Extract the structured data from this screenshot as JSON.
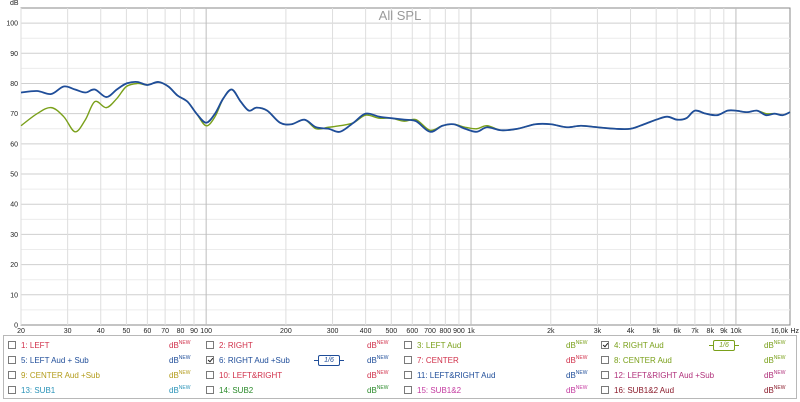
{
  "chart_data": {
    "type": "line",
    "title": "All SPL",
    "ylabel": "dB",
    "xunit": "Hz",
    "x_scale": "log",
    "xlim": [
      20,
      16000
    ],
    "ylim": [
      0,
      105
    ],
    "grid": true,
    "y_ticks": [
      "0",
      "10",
      "20",
      "30",
      "40",
      "50",
      "60",
      "70",
      "80",
      "90",
      "100"
    ],
    "x_ticks": [
      {
        "v": 20,
        "t": "20"
      },
      {
        "v": 30,
        "t": "30"
      },
      {
        "v": 40,
        "t": "40"
      },
      {
        "v": 50,
        "t": "50"
      },
      {
        "v": 60,
        "t": "60"
      },
      {
        "v": 70,
        "t": "70"
      },
      {
        "v": 80,
        "t": "80"
      },
      {
        "v": 90,
        "t": "90"
      },
      {
        "v": 100,
        "t": "100"
      },
      {
        "v": 200,
        "t": "200"
      },
      {
        "v": 300,
        "t": "300"
      },
      {
        "v": 400,
        "t": "400"
      },
      {
        "v": 500,
        "t": "500"
      },
      {
        "v": 600,
        "t": "600"
      },
      {
        "v": 700,
        "t": "700"
      },
      {
        "v": 800,
        "t": "800"
      },
      {
        "v": 900,
        "t": "900"
      },
      {
        "v": 1000,
        "t": "1k"
      },
      {
        "v": 2000,
        "t": "2k"
      },
      {
        "v": 3000,
        "t": "3k"
      },
      {
        "v": 4000,
        "t": "4k"
      },
      {
        "v": 5000,
        "t": "5k"
      },
      {
        "v": 6000,
        "t": "6k"
      },
      {
        "v": 7000,
        "t": "7k"
      },
      {
        "v": 8000,
        "t": "8k"
      },
      {
        "v": 9000,
        "t": "9k"
      },
      {
        "v": 10000,
        "t": "10k"
      },
      {
        "v": 16000,
        "t": "16,0k"
      }
    ],
    "series": [
      {
        "name": "4: RIGHT Aud",
        "color": "#7aa01a",
        "x": [
          20,
          23,
          26,
          29,
          32,
          35,
          38,
          42,
          46,
          50,
          55,
          60,
          66,
          72,
          78,
          85,
          92,
          100,
          108,
          116,
          125,
          135,
          145,
          155,
          170,
          190,
          210,
          235,
          260,
          290,
          320,
          360,
          400,
          450,
          500,
          560,
          620,
          700,
          780,
          860,
          950,
          1050,
          1150,
          1300,
          1500,
          1750,
          2000,
          2300,
          2600,
          3000,
          3500,
          4000,
          4500,
          5000,
          5500,
          6000,
          6500,
          7000,
          7700,
          8500,
          9300,
          10000,
          11000,
          12000,
          13000,
          14000,
          15000,
          16000
        ],
        "y": [
          66,
          70,
          72,
          69,
          64,
          68,
          74,
          72,
          75,
          79,
          80,
          79.5,
          80.5,
          79,
          76,
          74,
          70,
          66,
          69,
          75,
          78,
          74,
          71,
          72,
          71,
          67,
          66.5,
          68,
          65,
          65.5,
          66,
          67,
          69.5,
          68.5,
          68.5,
          67.5,
          68,
          64.5,
          66,
          66.5,
          65.5,
          65,
          66,
          64.5,
          65,
          66.5,
          66.5,
          65.5,
          66,
          65.5,
          65,
          65,
          66.5,
          68,
          69,
          68,
          68.5,
          71,
          70,
          69.5,
          71,
          71,
          70.5,
          71,
          70,
          70,
          69.5,
          70.5
        ]
      },
      {
        "name": "6: RIGHT Aud +Sub",
        "color": "#1f4d99",
        "x": [
          20,
          23,
          26,
          29,
          32,
          35,
          38,
          42,
          46,
          50,
          55,
          60,
          66,
          72,
          78,
          85,
          92,
          100,
          108,
          116,
          125,
          135,
          145,
          155,
          170,
          190,
          210,
          235,
          260,
          290,
          320,
          360,
          400,
          450,
          500,
          560,
          620,
          700,
          780,
          860,
          950,
          1050,
          1150,
          1300,
          1500,
          1750,
          2000,
          2300,
          2600,
          3000,
          3500,
          4000,
          4500,
          5000,
          5500,
          6000,
          6500,
          7000,
          7700,
          8500,
          9300,
          10000,
          11000,
          12000,
          13000,
          14000,
          15000,
          16000
        ],
        "y": [
          77,
          77.5,
          76.5,
          79,
          78,
          77,
          78,
          75.5,
          78,
          80,
          80.5,
          79.5,
          80.5,
          79,
          76,
          74,
          70,
          67,
          70,
          75,
          78,
          74,
          71,
          72,
          71,
          67,
          66.5,
          68,
          65.5,
          65,
          64,
          67,
          70,
          69,
          68.5,
          68,
          67.5,
          64,
          66,
          66.5,
          65,
          64,
          65.5,
          64.5,
          65,
          66.5,
          66.5,
          65.5,
          66,
          65.5,
          65,
          65,
          66.5,
          68,
          69,
          68,
          68.5,
          71,
          70,
          69.5,
          71,
          71,
          70.5,
          71,
          69.5,
          70,
          69.5,
          70.5
        ]
      }
    ]
  },
  "legend": {
    "db_label": "dB",
    "new_label": "NEW",
    "smoothing_label": "1/6",
    "items": [
      {
        "label": "1: LEFT",
        "checked": false,
        "color": "#d0304a",
        "db_color": "#d0304a",
        "smooth": false
      },
      {
        "label": "2: RIGHT",
        "checked": false,
        "color": "#d0304a",
        "db_color": "#d0304a",
        "smooth": false
      },
      {
        "label": "3: LEFT Aud",
        "checked": false,
        "color": "#7aa01a",
        "db_color": "#7aa01a",
        "smooth": false
      },
      {
        "label": "4: RIGHT Aud",
        "checked": true,
        "color": "#7aa01a",
        "db_color": "#7aa01a",
        "smooth": true
      },
      {
        "label": "5: LEFT Aud + Sub",
        "checked": false,
        "color": "#1f4d99",
        "db_color": "#1f4d99",
        "smooth": false
      },
      {
        "label": "6: RIGHT Aud +Sub",
        "checked": true,
        "color": "#1f4d99",
        "db_color": "#1f4d99",
        "smooth": true
      },
      {
        "label": "7: CENTER",
        "checked": false,
        "color": "#d0304a",
        "db_color": "#d0304a",
        "smooth": false
      },
      {
        "label": "8: CENTER Aud",
        "checked": false,
        "color": "#7aa01a",
        "db_color": "#7aa01a",
        "smooth": false
      },
      {
        "label": "9: CENTER Aud +Sub",
        "checked": false,
        "color": "#b39b1a",
        "db_color": "#b39b1a",
        "smooth": false
      },
      {
        "label": "10: LEFT&RIGHT",
        "checked": false,
        "color": "#d0304a",
        "db_color": "#d0304a",
        "smooth": false
      },
      {
        "label": "11: LEFT&RIGHT Aud",
        "checked": false,
        "color": "#1f4d99",
        "db_color": "#1f4d99",
        "smooth": false
      },
      {
        "label": "12: LEFT&RIGHT Aud +Sub",
        "checked": false,
        "color": "#b0307a",
        "db_color": "#b0307a",
        "smooth": false
      },
      {
        "label": "13: SUB1",
        "checked": false,
        "color": "#2a93b8",
        "db_color": "#2a93b8",
        "smooth": false
      },
      {
        "label": "14: SUB2",
        "checked": false,
        "color": "#2a8a2a",
        "db_color": "#2a8a2a",
        "smooth": false
      },
      {
        "label": "15: SUB1&2",
        "checked": false,
        "color": "#c43aa0",
        "db_color": "#c43aa0",
        "smooth": false
      },
      {
        "label": "16: SUB1&2 Aud",
        "checked": false,
        "color": "#8a1a2a",
        "db_color": "#8a1a2a",
        "smooth": false
      }
    ]
  }
}
